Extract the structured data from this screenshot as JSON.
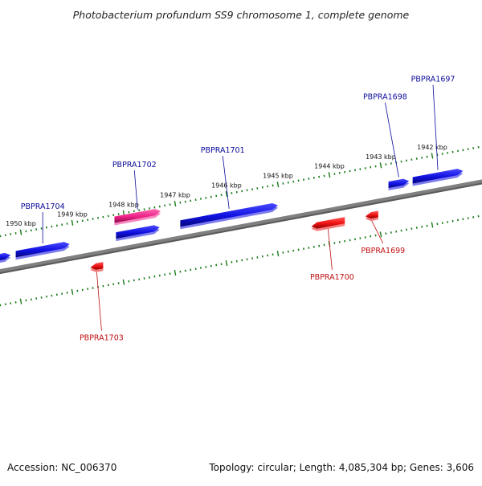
{
  "title": "Photobacterium profundum SS9 chromosome 1, complete genome",
  "footer": {
    "accession": "Accession: NC_006370",
    "summary": "Topology: circular; Length: 4,085,304 bp; Genes: 3,606"
  },
  "colors": {
    "forward_gene": "#1010e0",
    "reverse_gene": "#ee1111",
    "highlight_gene": "#ee2288",
    "tick": "#1b7a1b",
    "backbone": "#808080",
    "forward_label": "#0a0a9a",
    "reverse_label": "#c01010"
  },
  "axis": {
    "unit": "kbp",
    "ticks": [
      {
        "kbp": 1942,
        "label": "1942 kbp"
      },
      {
        "kbp": 1943,
        "label": "1943 kbp"
      },
      {
        "kbp": 1944,
        "label": "1944 kbp"
      },
      {
        "kbp": 1945,
        "label": "1945 kbp"
      },
      {
        "kbp": 1946,
        "label": "1946 kbp"
      },
      {
        "kbp": 1947,
        "label": "1947 kbp"
      },
      {
        "kbp": 1948,
        "label": "1948 kbp"
      },
      {
        "kbp": 1949,
        "label": "1949 kbp"
      },
      {
        "kbp": 1950,
        "label": "1950 kbp"
      }
    ]
  },
  "genes": [
    {
      "name": "",
      "strand": "+",
      "start_kbp": 1950.45,
      "end_kbp": 1950.2
    },
    {
      "name": "PBPRA1704",
      "strand": "+",
      "start_kbp": 1950.1,
      "end_kbp": 1949.05
    },
    {
      "name": "",
      "strand": "+",
      "start_kbp": 1948.15,
      "end_kbp": 1947.3
    },
    {
      "name": "PBPRA1702",
      "strand": "+",
      "start_kbp": 1948.18,
      "end_kbp": 1947.28,
      "highlight": true
    },
    {
      "name": "PBPRA1701",
      "strand": "+",
      "start_kbp": 1946.9,
      "end_kbp": 1945.0
    },
    {
      "name": "PBPRA1698",
      "strand": "+",
      "start_kbp": 1942.85,
      "end_kbp": 1942.45
    },
    {
      "name": "PBPRA1697",
      "strand": "+",
      "start_kbp": 1942.38,
      "end_kbp": 1941.4
    },
    {
      "name": "PBPRA1703",
      "strand": "-",
      "start_kbp": 1948.65,
      "end_kbp": 1948.4
    },
    {
      "name": "PBPRA1700",
      "strand": "-",
      "start_kbp": 1944.35,
      "end_kbp": 1943.7
    },
    {
      "name": "PBPRA1699",
      "strand": "-",
      "start_kbp": 1943.3,
      "end_kbp": 1943.05
    }
  ]
}
